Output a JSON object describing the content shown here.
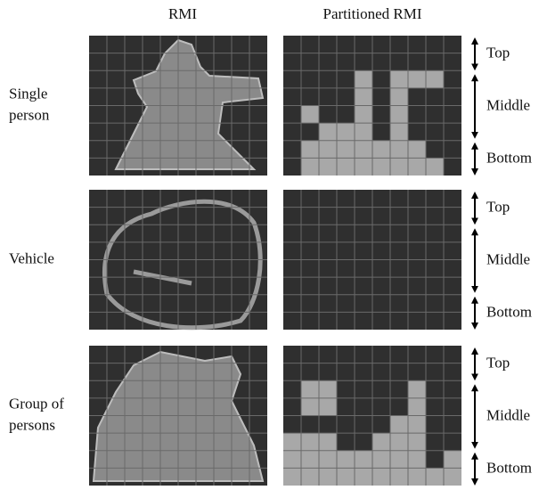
{
  "header": {
    "columns": [
      "RMI",
      "Partitioned RMI"
    ]
  },
  "rows": [
    {
      "label_lines": [
        "Single",
        "person"
      ],
      "zones": [
        "Top",
        "Middle",
        "Bottom"
      ]
    },
    {
      "label_lines": [
        "Vehicle"
      ],
      "zones": [
        "Top",
        "Middle",
        "Bottom"
      ]
    },
    {
      "label_lines": [
        "Group of",
        "persons"
      ],
      "zones": [
        "Top",
        "Middle",
        "Bottom"
      ]
    }
  ]
}
